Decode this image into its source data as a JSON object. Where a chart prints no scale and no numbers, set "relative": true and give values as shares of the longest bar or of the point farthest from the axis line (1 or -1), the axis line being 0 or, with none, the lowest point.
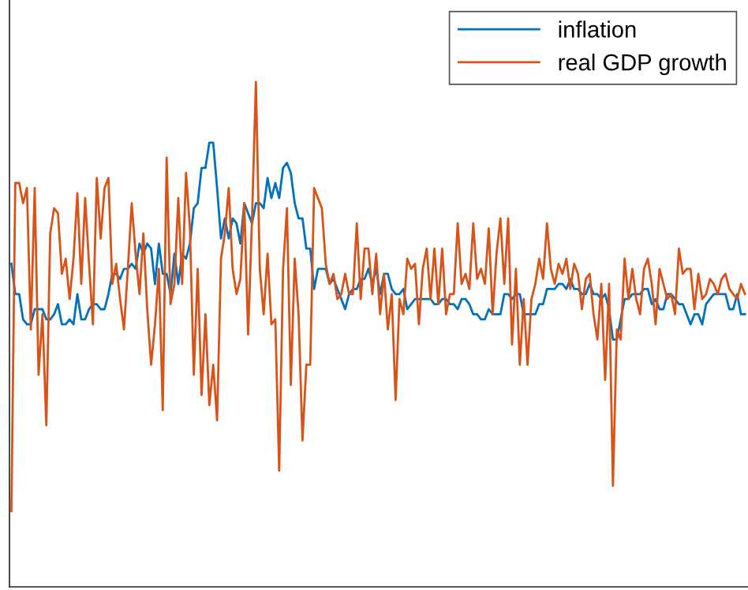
{
  "chart_data": {
    "type": "line",
    "relative": true,
    "legend": "top right",
    "categories": [
      null,
      null,
      null,
      null,
      null,
      null,
      null,
      null,
      null,
      null,
      null,
      null,
      null,
      null,
      null,
      null,
      null,
      null,
      null,
      null,
      null,
      null,
      null,
      null,
      null,
      null,
      null,
      null,
      null,
      null,
      null,
      null,
      null,
      null,
      null,
      null,
      null,
      null,
      null,
      null,
      null,
      null,
      null,
      null,
      null,
      null,
      null,
      null,
      null,
      null,
      null,
      null,
      null,
      null,
      null,
      null,
      null,
      null,
      null,
      null,
      null,
      null,
      null,
      null,
      null,
      null,
      null,
      null,
      null,
      null,
      null,
      null,
      null,
      null,
      null,
      null,
      null,
      null,
      null,
      null,
      null,
      null,
      null,
      null,
      null,
      null,
      null,
      null,
      null,
      null,
      null,
      null,
      null,
      null,
      null,
      null,
      null,
      null,
      null,
      null,
      null,
      null,
      null,
      null,
      null,
      null,
      null,
      null,
      null,
      null,
      null,
      null,
      null,
      null,
      null,
      null,
      null,
      null,
      null,
      null,
      null,
      null,
      null,
      null,
      null,
      null,
      null,
      null,
      null,
      null,
      null,
      null,
      null,
      null,
      null,
      null,
      null,
      null,
      null,
      null,
      null,
      null,
      null,
      null,
      null,
      null,
      null,
      null,
      null,
      null,
      null,
      null,
      null,
      null,
      null,
      null,
      null,
      null,
      null,
      null,
      null,
      null,
      null,
      null,
      null,
      null,
      null,
      null,
      null,
      null,
      null,
      null,
      null,
      null,
      null,
      null,
      null,
      null,
      null,
      null,
      null,
      null,
      null,
      null,
      null,
      null,
      null,
      null,
      null,
      null
    ],
    "series": [
      {
        "name": "inflation",
        "color": "#0072bd",
        "values": [
          0.64,
          0.58,
          0.58,
          0.53,
          0.52,
          0.52,
          0.55,
          0.55,
          0.55,
          0.53,
          0.53,
          0.54,
          0.56,
          0.52,
          0.52,
          0.53,
          0.52,
          0.58,
          0.53,
          0.53,
          0.55,
          0.56,
          0.56,
          0.55,
          0.55,
          0.58,
          0.62,
          0.62,
          0.61,
          0.63,
          0.63,
          0.64,
          0.63,
          0.68,
          0.66,
          0.68,
          0.67,
          0.6,
          0.68,
          0.62,
          0.62,
          0.58,
          0.66,
          0.6,
          0.66,
          0.65,
          0.68,
          0.75,
          0.76,
          0.83,
          0.83,
          0.88,
          0.88,
          0.79,
          0.69,
          0.73,
          0.69,
          0.73,
          0.72,
          0.68,
          0.76,
          0.74,
          0.72,
          0.76,
          0.76,
          0.75,
          0.81,
          0.77,
          0.8,
          0.77,
          0.83,
          0.84,
          0.82,
          0.76,
          0.73,
          0.73,
          0.67,
          0.67,
          0.59,
          0.63,
          0.63,
          0.63,
          0.6,
          0.61,
          0.59,
          0.57,
          0.55,
          0.58,
          0.59,
          0.59,
          0.61,
          0.61,
          0.63,
          0.6,
          0.63,
          0.58,
          0.62,
          0.62,
          0.59,
          0.58,
          0.58,
          0.59,
          0.55,
          0.56,
          0.57,
          0.57,
          0.57,
          0.57,
          0.57,
          0.56,
          0.56,
          0.57,
          0.57,
          0.56,
          0.56,
          0.55,
          0.57,
          0.57,
          0.56,
          0.54,
          0.54,
          0.53,
          0.53,
          0.55,
          0.54,
          0.54,
          0.54,
          0.58,
          0.58,
          0.57,
          0.58,
          0.58,
          0.54,
          0.54,
          0.54,
          0.54,
          0.56,
          0.56,
          0.59,
          0.59,
          0.59,
          0.6,
          0.6,
          0.59,
          0.61,
          0.59,
          0.59,
          0.58,
          0.58,
          0.6,
          0.58,
          0.58,
          0.57,
          0.58,
          0.55,
          0.49,
          0.49,
          0.53,
          0.57,
          0.57,
          0.58,
          0.58,
          0.58,
          0.59,
          0.59,
          0.56,
          0.57,
          0.55,
          0.55,
          0.58,
          0.58,
          0.57,
          0.56,
          0.56,
          0.54,
          0.52,
          0.54,
          0.54,
          0.52,
          0.56,
          0.57,
          0.58,
          0.58,
          0.58,
          0.58,
          0.55,
          0.55,
          0.58,
          0.54,
          0.54
        ]
      },
      {
        "name": "real GDP growth",
        "color": "#d95319",
        "values": [
          0.15,
          0.8,
          0.8,
          0.76,
          0.79,
          0.51,
          0.79,
          0.42,
          0.54,
          0.32,
          0.7,
          0.75,
          0.74,
          0.62,
          0.65,
          0.57,
          0.65,
          0.78,
          0.6,
          0.77,
          0.64,
          0.52,
          0.81,
          0.69,
          0.79,
          0.81,
          0.6,
          0.64,
          0.57,
          0.51,
          0.63,
          0.76,
          0.66,
          0.58,
          0.7,
          0.55,
          0.44,
          0.52,
          0.63,
          0.35,
          0.85,
          0.56,
          0.6,
          0.77,
          0.6,
          0.82,
          0.71,
          0.42,
          0.63,
          0.38,
          0.54,
          0.36,
          0.44,
          0.33,
          0.65,
          0.7,
          0.79,
          0.63,
          0.58,
          0.61,
          0.76,
          0.5,
          0.73,
          1.0,
          0.63,
          0.54,
          0.66,
          0.52,
          0.53,
          0.23,
          0.63,
          0.75,
          0.4,
          0.65,
          0.54,
          0.29,
          0.44,
          0.44,
          0.79,
          0.77,
          0.75,
          0.64,
          0.6,
          0.62,
          0.57,
          0.58,
          0.62,
          0.58,
          0.58,
          0.72,
          0.57,
          0.67,
          0.67,
          0.58,
          0.66,
          0.54,
          0.62,
          0.51,
          0.58,
          0.37,
          0.57,
          0.54,
          0.65,
          0.63,
          0.64,
          0.52,
          0.63,
          0.67,
          0.57,
          0.67,
          0.56,
          0.67,
          0.54,
          0.58,
          0.58,
          0.72,
          0.6,
          0.62,
          0.59,
          0.72,
          0.61,
          0.63,
          0.6,
          0.71,
          0.54,
          0.66,
          0.73,
          0.6,
          0.73,
          0.48,
          0.63,
          0.44,
          0.57,
          0.44,
          0.57,
          0.6,
          0.65,
          0.61,
          0.72,
          0.63,
          0.6,
          0.64,
          0.62,
          0.65,
          0.59,
          0.64,
          0.62,
          0.55,
          0.61,
          0.62,
          0.54,
          0.49,
          0.6,
          0.41,
          0.6,
          0.2,
          0.51,
          0.49,
          0.65,
          0.57,
          0.63,
          0.57,
          0.54,
          0.63,
          0.65,
          0.6,
          0.52,
          0.63,
          0.6,
          0.57,
          0.58,
          0.54,
          0.67,
          0.62,
          0.63,
          0.63,
          0.55,
          0.62,
          0.57,
          0.58,
          0.61,
          0.6,
          0.58,
          0.61,
          0.62,
          0.59,
          0.58,
          0.57,
          0.6,
          0.58
        ]
      }
    ]
  }
}
